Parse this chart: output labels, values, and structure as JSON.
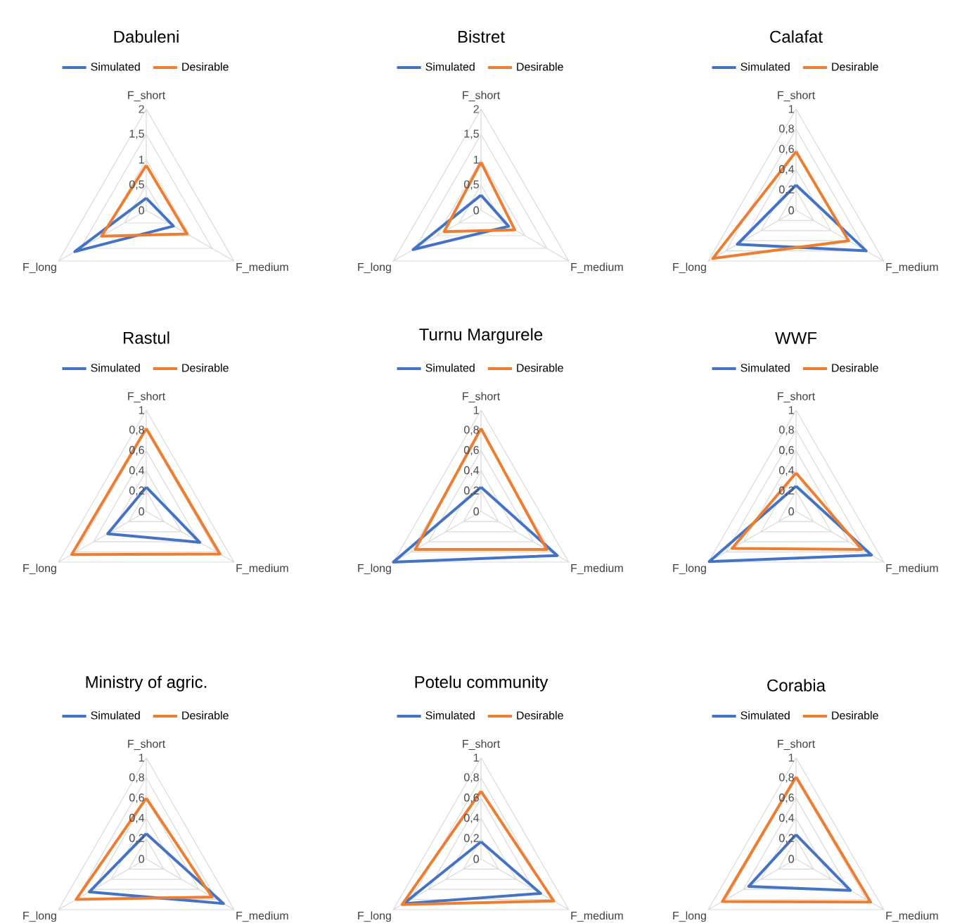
{
  "chart_data": [
    {
      "type": "radar",
      "title": "Dabuleni",
      "categories": [
        "F_short",
        "F_medium",
        "F_long"
      ],
      "ylim": [
        0,
        2
      ],
      "yticks": [
        0,
        {
          "value": 0.5,
          "label": "0,5"
        },
        1,
        {
          "value": 1.5,
          "label": "1,5"
        },
        2
      ],
      "grid": true,
      "legend": "top",
      "series": [
        {
          "name": "Simulated",
          "color": "#4472c4",
          "values": [
            0.24,
            0.62,
            1.63
          ]
        },
        {
          "name": "Desirable",
          "color": "#ed7d31",
          "values": [
            0.89,
            0.93,
            1.02
          ]
        }
      ]
    },
    {
      "type": "radar",
      "title": "Bistret",
      "categories": [
        "F_short",
        "F_medium",
        "F_long"
      ],
      "ylim": [
        0,
        2
      ],
      "yticks": [
        0,
        {
          "value": 0.5,
          "label": "0,5"
        },
        1,
        {
          "value": 1.5,
          "label": "1,5"
        },
        2
      ],
      "grid": true,
      "legend": "top",
      "series": [
        {
          "name": "Simulated",
          "color": "#4472c4",
          "values": [
            0.3,
            0.63,
            1.55
          ]
        },
        {
          "name": "Desirable",
          "color": "#ed7d31",
          "values": [
            0.95,
            0.77,
            0.84
          ]
        }
      ]
    },
    {
      "type": "radar",
      "title": "Calafat",
      "categories": [
        "F_short",
        "F_medium",
        "F_long"
      ],
      "ylim": [
        0,
        1
      ],
      "yticks": [
        0,
        {
          "value": 0.2,
          "label": "0,2"
        },
        {
          "value": 0.4,
          "label": "0,4"
        },
        {
          "value": 0.6,
          "label": "0,6"
        },
        {
          "value": 0.8,
          "label": "0,8"
        },
        1
      ],
      "grid": true,
      "legend": "top",
      "series": [
        {
          "name": "Simulated",
          "color": "#4472c4",
          "values": [
            0.25,
            0.8,
            0.67
          ]
        },
        {
          "name": "Desirable",
          "color": "#ed7d31",
          "values": [
            0.58,
            0.6,
            0.95
          ]
        }
      ]
    },
    {
      "type": "radar",
      "title": "Rastul",
      "categories": [
        "F_short",
        "F_medium",
        "F_long"
      ],
      "ylim": [
        0,
        1
      ],
      "yticks": [
        0,
        {
          "value": 0.2,
          "label": "0,2"
        },
        {
          "value": 0.4,
          "label": "0,4"
        },
        {
          "value": 0.6,
          "label": "0,6"
        },
        {
          "value": 0.8,
          "label": "0,8"
        },
        1
      ],
      "grid": true,
      "legend": "top",
      "series": [
        {
          "name": "Simulated",
          "color": "#4472c4",
          "values": [
            0.24,
            0.61,
            0.44
          ]
        },
        {
          "name": "Desirable",
          "color": "#ed7d31",
          "values": [
            0.82,
            0.84,
            0.85
          ]
        }
      ]
    },
    {
      "type": "radar",
      "title": "Turnu Margurele",
      "categories": [
        "F_short",
        "F_medium",
        "F_long"
      ],
      "ylim": [
        0,
        1
      ],
      "yticks": [
        0,
        {
          "value": 0.2,
          "label": "0,2"
        },
        {
          "value": 0.4,
          "label": "0,4"
        },
        {
          "value": 0.6,
          "label": "0,6"
        },
        {
          "value": 0.8,
          "label": "0,8"
        },
        1
      ],
      "grid": true,
      "legend": "top",
      "series": [
        {
          "name": "Simulated",
          "color": "#4472c4",
          "values": [
            0.24,
            0.87,
            1.0
          ]
        },
        {
          "name": "Desirable",
          "color": "#ed7d31",
          "values": [
            0.82,
            0.75,
            0.75
          ]
        }
      ]
    },
    {
      "type": "radar",
      "title": "WWF",
      "categories": [
        "F_short",
        "F_medium",
        "F_long"
      ],
      "ylim": [
        0,
        1
      ],
      "yticks": [
        0,
        {
          "value": 0.2,
          "label": "0,2"
        },
        {
          "value": 0.4,
          "label": "0,4"
        },
        {
          "value": 0.6,
          "label": "0,6"
        },
        {
          "value": 0.8,
          "label": "0,8"
        },
        1
      ],
      "grid": true,
      "legend": "top",
      "series": [
        {
          "name": "Simulated",
          "color": "#4472c4",
          "values": [
            0.25,
            0.86,
            0.99
          ]
        },
        {
          "name": "Desirable",
          "color": "#ed7d31",
          "values": [
            0.38,
            0.75,
            0.73
          ]
        }
      ]
    },
    {
      "type": "radar",
      "title": "Ministry of agric.",
      "categories": [
        "F_short",
        "F_medium",
        "F_long"
      ],
      "ylim": [
        0,
        1
      ],
      "yticks": [
        0,
        {
          "value": 0.2,
          "label": "0,2"
        },
        {
          "value": 0.4,
          "label": "0,4"
        },
        {
          "value": 0.6,
          "label": "0,6"
        },
        {
          "value": 0.8,
          "label": "0,8"
        },
        1
      ],
      "grid": true,
      "legend": "top",
      "series": [
        {
          "name": "Simulated",
          "color": "#4472c4",
          "values": [
            0.25,
            0.88,
            0.65
          ]
        },
        {
          "name": "Desirable",
          "color": "#ed7d31",
          "values": [
            0.6,
            0.75,
            0.8
          ]
        }
      ]
    },
    {
      "type": "radar",
      "title": "Potelu community",
      "categories": [
        "F_short",
        "F_medium",
        "F_long"
      ],
      "ylim": [
        0,
        1
      ],
      "yticks": [
        0,
        {
          "value": 0.2,
          "label": "0,2"
        },
        {
          "value": 0.4,
          "label": "0,4"
        },
        {
          "value": 0.6,
          "label": "0,6"
        },
        {
          "value": 0.8,
          "label": "0,8"
        },
        1
      ],
      "grid": true,
      "legend": "top",
      "series": [
        {
          "name": "Simulated",
          "color": "#4472c4",
          "values": [
            0.17,
            0.68,
            0.88
          ]
        },
        {
          "name": "Desirable",
          "color": "#ed7d31",
          "values": [
            0.67,
            0.83,
            0.9
          ]
        }
      ]
    },
    {
      "type": "radar",
      "title": "Corabia",
      "categories": [
        "F_short",
        "F_medium",
        "F_long"
      ],
      "ylim": [
        0,
        1
      ],
      "yticks": [
        0,
        {
          "value": 0.2,
          "label": "0,2"
        },
        {
          "value": 0.4,
          "label": "0,4"
        },
        {
          "value": 0.6,
          "label": "0,6"
        },
        {
          "value": 0.8,
          "label": "0,8"
        },
        1
      ],
      "grid": true,
      "legend": "top",
      "series": [
        {
          "name": "Simulated",
          "color": "#4472c4",
          "values": [
            0.24,
            0.62,
            0.54
          ]
        },
        {
          "name": "Desirable",
          "color": "#ed7d31",
          "values": [
            0.81,
            0.85,
            0.84
          ]
        }
      ]
    }
  ]
}
